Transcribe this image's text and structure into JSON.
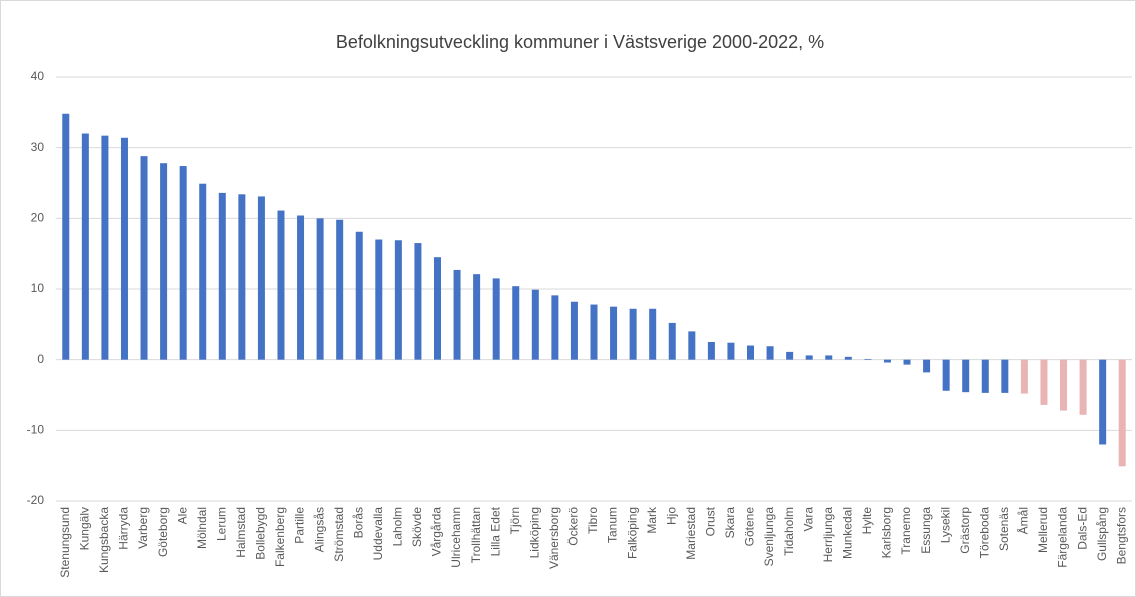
{
  "chart_data": {
    "type": "bar",
    "title": "Befolkningsutveckling kommuner i Västsverige 2000-2022, %",
    "categories": [
      "Stenungsund",
      "Kungälv",
      "Kungsbacka",
      "Härryda",
      "Varberg",
      "Göteborg",
      "Ale",
      "Mölndal",
      "Lerum",
      "Halmstad",
      "Bollebygd",
      "Falkenberg",
      "Partille",
      "Alingsås",
      "Strömstad",
      "Borås",
      "Uddevalla",
      "Laholm",
      "Skövde",
      "Vårgårda",
      "Ulricehamn",
      "Trollhättan",
      "Lilla Edet",
      "Tjörn",
      "Lidköping",
      "Vänersborg",
      "Öckerö",
      "Tibro",
      "Tanum",
      "Falköping",
      "Mark",
      "Hjo",
      "Mariestad",
      "Orust",
      "Skara",
      "Götene",
      "Svenljunga",
      "Tidaholm",
      "Vara",
      "Herrljunga",
      "Munkedal",
      "Hylte",
      "Karlsborg",
      "Tranemo",
      "Essunga",
      "Lysekil",
      "Grästorp",
      "Töreboda",
      "Sotenäs",
      "Åmål",
      "Mellerud",
      "Färgelanda",
      "Dals-Ed",
      "Gullspång",
      "Bengtsfors"
    ],
    "values": [
      34.8,
      32,
      31.7,
      31.4,
      28.8,
      27.8,
      27.4,
      24.9,
      23.6,
      23.4,
      23.1,
      21.1,
      20.4,
      20.0,
      19.8,
      18.1,
      17.0,
      16.9,
      16.5,
      14.5,
      12.7,
      12.1,
      11.5,
      10.4,
      9.9,
      9.1,
      8.2,
      7.8,
      7.5,
      7.2,
      7.2,
      5.2,
      4.0,
      2.5,
      2.4,
      2.0,
      1.9,
      1.1,
      0.6,
      0.6,
      0.4,
      0.1,
      -0.4,
      -0.7,
      -1.8,
      -4.4,
      -4.6,
      -4.7,
      -4.7,
      -4.8,
      -6.4,
      -7.2,
      -7.8,
      -12.0,
      -15.1
    ],
    "colors": [
      "#4472c4",
      "#4472c4",
      "#4472c4",
      "#4472c4",
      "#4472c4",
      "#4472c4",
      "#4472c4",
      "#4472c4",
      "#4472c4",
      "#4472c4",
      "#4472c4",
      "#4472c4",
      "#4472c4",
      "#4472c4",
      "#4472c4",
      "#4472c4",
      "#4472c4",
      "#4472c4",
      "#4472c4",
      "#4472c4",
      "#4472c4",
      "#4472c4",
      "#4472c4",
      "#4472c4",
      "#4472c4",
      "#4472c4",
      "#4472c4",
      "#4472c4",
      "#4472c4",
      "#4472c4",
      "#4472c4",
      "#4472c4",
      "#4472c4",
      "#4472c4",
      "#4472c4",
      "#4472c4",
      "#4472c4",
      "#4472c4",
      "#4472c4",
      "#4472c4",
      "#4472c4",
      "#4472c4",
      "#4472c4",
      "#4472c4",
      "#4472c4",
      "#4472c4",
      "#4472c4",
      "#4472c4",
      "#4472c4",
      "#e8b4b4",
      "#e8b4b4",
      "#e8b4b4",
      "#e8b4b4",
      "#4472c4",
      "#e8b4b4"
    ],
    "ylim": [
      -20,
      40
    ],
    "yticks": [
      -20,
      -10,
      0,
      10,
      20,
      30,
      40
    ],
    "grid": true
  }
}
